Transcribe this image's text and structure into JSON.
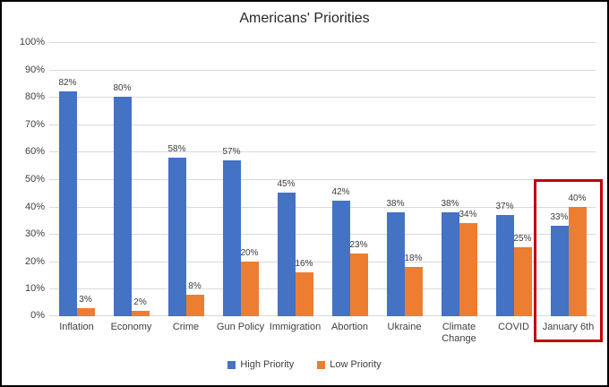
{
  "chart_data": {
    "type": "bar",
    "title": "Americans' Priorities",
    "categories": [
      "Inflation",
      "Economy",
      "Crime",
      "Gun Policy",
      "Immigration",
      "Abortion",
      "Ukraine",
      "Climate Change",
      "COVID",
      "January 6th"
    ],
    "series": [
      {
        "name": "High Priority",
        "color": "#4472C4",
        "values": [
          82,
          80,
          58,
          57,
          45,
          42,
          38,
          38,
          37,
          33
        ]
      },
      {
        "name": "Low Priority",
        "color": "#ED7D31",
        "values": [
          3,
          2,
          8,
          20,
          16,
          23,
          18,
          34,
          25,
          40
        ]
      }
    ],
    "data_labels": [
      "82%",
      "80%",
      "58%",
      "57%",
      "45%",
      "42%",
      "38%",
      "38%",
      "37%",
      "33%",
      "3%",
      "2%",
      "8%",
      "20%",
      "16%",
      "23%",
      "18%",
      "34%",
      "25%",
      "40%"
    ],
    "xlabel": "",
    "ylabel": "",
    "ylim": [
      0,
      100
    ],
    "ytick_labels": [
      "0%",
      "10%",
      "20%",
      "30%",
      "40%",
      "50%",
      "60%",
      "70%",
      "80%",
      "90%",
      "100%"
    ],
    "grid": true,
    "legend_position": "bottom",
    "highlight": {
      "category": "January 6th",
      "box_color": "#C00000"
    }
  },
  "legend": {
    "items": [
      {
        "label": "High Priority",
        "color": "#4472C4"
      },
      {
        "label": "Low Priority",
        "color": "#ED7D31"
      }
    ]
  },
  "colors": {
    "gridline": "#D9D9D9",
    "axis_text": "#404040",
    "title_text": "#262626",
    "frame_border": "#000000",
    "background": "#FFFFFF"
  }
}
